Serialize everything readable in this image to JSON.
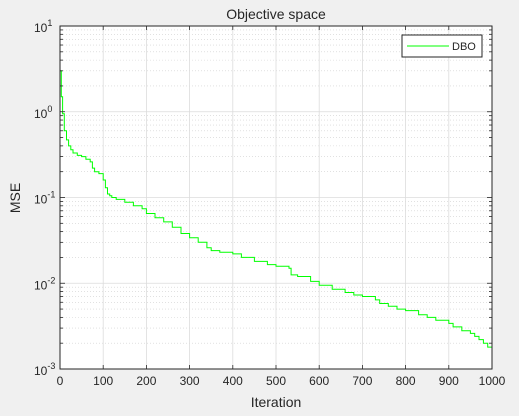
{
  "chart_data": {
    "type": "line",
    "title": "Objective space",
    "xlabel": "Iteration",
    "ylabel": "MSE",
    "xlim": [
      0,
      1000
    ],
    "ylim": [
      0.001,
      10
    ],
    "yscale": "log",
    "grid": true,
    "minor_grid": true,
    "legend_position": "top-right",
    "x_ticks": [
      "0",
      "100",
      "200",
      "300",
      "400",
      "500",
      "600",
      "700",
      "800",
      "900",
      "1000"
    ],
    "y_ticks": [
      {
        "base": "10",
        "exp": "-3"
      },
      {
        "base": "10",
        "exp": "-2"
      },
      {
        "base": "10",
        "exp": "-1"
      },
      {
        "base": "10",
        "exp": "0"
      },
      {
        "base": "10",
        "exp": "1"
      }
    ],
    "series": [
      {
        "name": "DBO",
        "color": "#00ff00",
        "x": [
          1,
          3,
          6,
          10,
          15,
          20,
          25,
          30,
          40,
          50,
          60,
          70,
          75,
          80,
          90,
          100,
          105,
          110,
          115,
          120,
          130,
          150,
          170,
          190,
          200,
          220,
          240,
          260,
          280,
          300,
          320,
          340,
          350,
          370,
          400,
          420,
          450,
          480,
          500,
          530,
          535,
          550,
          580,
          600,
          630,
          660,
          680,
          700,
          730,
          740,
          760,
          780,
          800,
          830,
          850,
          870,
          900,
          910,
          930,
          950,
          960,
          970,
          980,
          990,
          1000
        ],
        "y": [
          3.0,
          1.5,
          0.95,
          0.6,
          0.47,
          0.4,
          0.36,
          0.33,
          0.31,
          0.3,
          0.28,
          0.26,
          0.22,
          0.2,
          0.19,
          0.16,
          0.13,
          0.11,
          0.105,
          0.1,
          0.095,
          0.088,
          0.08,
          0.074,
          0.065,
          0.058,
          0.052,
          0.045,
          0.038,
          0.034,
          0.03,
          0.026,
          0.024,
          0.023,
          0.022,
          0.02,
          0.018,
          0.0165,
          0.0158,
          0.015,
          0.0125,
          0.012,
          0.0105,
          0.0095,
          0.0085,
          0.0078,
          0.0073,
          0.007,
          0.0064,
          0.0058,
          0.0054,
          0.005,
          0.0048,
          0.0043,
          0.004,
          0.0037,
          0.0034,
          0.0031,
          0.0028,
          0.0026,
          0.0024,
          0.0022,
          0.002,
          0.0018,
          0.00165
        ]
      }
    ]
  }
}
